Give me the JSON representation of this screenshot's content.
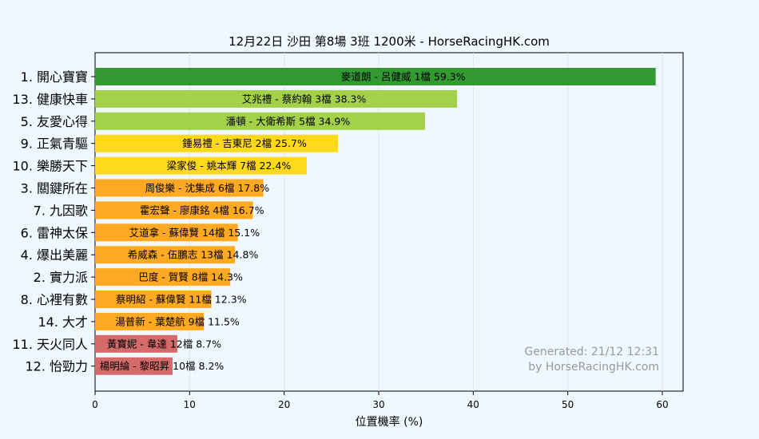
{
  "chart_data": {
    "type": "bar",
    "orientation": "horizontal",
    "title": "12月22日  沙田  第8場  3班  1200米 - HorseRacingHK.com",
    "xlabel": "位置機率 (%)",
    "ylabel": "",
    "xlim": [
      0,
      62.2
    ],
    "xticks": [
      "0",
      "10",
      "20",
      "30",
      "40",
      "50",
      "60"
    ],
    "grid": "vertical",
    "categories": [
      "1. 開心寶寶",
      "13. 健康快車",
      "5. 友愛心得",
      "9. 正氣青驅",
      "10. 樂勝天下",
      "3. 關鍵所在",
      "7. 九因歌",
      "6. 雷神太保",
      "4. 爆出美麗",
      "2. 實力派",
      "8. 心裡有數",
      "14. 大才",
      "11. 天火同人",
      "12. 怡勁力"
    ],
    "values": [
      59.3,
      38.3,
      34.9,
      25.7,
      22.4,
      17.8,
      16.7,
      15.1,
      14.8,
      14.3,
      12.3,
      11.5,
      8.7,
      8.2
    ],
    "bar_labels": [
      "麥道朗 - 呂健威 1檔  59.3%",
      "艾兆禮 - 蔡約翰 3檔  38.3%",
      "潘頓 - 大衛希斯 5檔  34.9%",
      "鍾易禮 - 吉東尼 2檔  25.7%",
      "梁家俊 - 姚本輝 7檔  22.4%",
      "周俊樂 - 沈集成 6檔  17.8%",
      "霍宏聲 - 廖康銘 4檔  16.7%",
      "艾道拿 - 蘇偉賢 14檔  15.1%",
      "希威森 - 伍鵬志 13檔  14.8%",
      "巴度 - 賀賢 8檔  14.3%",
      "蔡明紹 - 蘇偉賢 11檔  12.3%",
      "湯普新 - 葉楚航 9檔  11.5%",
      "黃寶妮 - 韋達 12檔  8.7%",
      "楊明綸 - 黎昭昇 10檔  8.2%"
    ],
    "colors": [
      "#339933",
      "#a3d14a",
      "#a3d14a",
      "#ffd91a",
      "#ffd91a",
      "#ffaa22",
      "#ffaa22",
      "#ffaa22",
      "#ffaa22",
      "#ffaa22",
      "#ffaa22",
      "#ffaa22",
      "#d46a6a",
      "#d46a6a"
    ],
    "watermark": [
      "Generated: 21/12 12:31",
      "by HorseRacingHK.com"
    ]
  }
}
